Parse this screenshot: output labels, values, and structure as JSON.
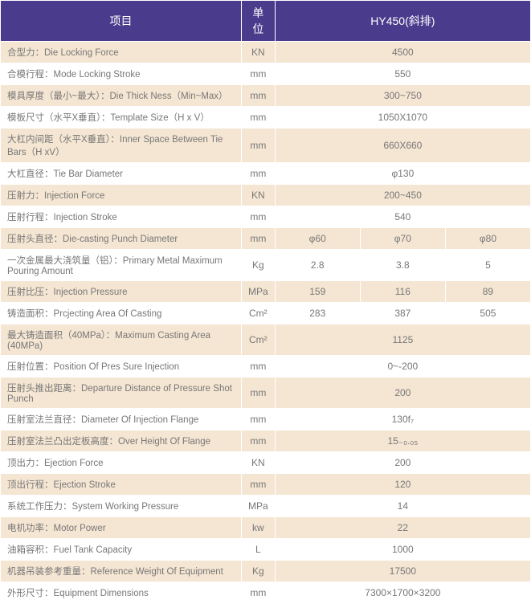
{
  "header": {
    "project": "项目",
    "unit": "单位",
    "model": "HY450(斜排)"
  },
  "rows": [
    {
      "label": "合型力：Die Locking Force",
      "unit": "KN",
      "value": "4500"
    },
    {
      "label": "合模行程：Mode Locking Stroke",
      "unit": "mm",
      "value": "550"
    },
    {
      "label": "模具厚度（最小~最大）：Die Thick Ness（Min~Max）",
      "unit": "mm",
      "value": "300~750"
    },
    {
      "label": "模板尺寸（水平X垂直）：Template Size（H x V）",
      "unit": "mm",
      "value": "1050X1070"
    },
    {
      "label": "大杠内间距（水平X垂直）：Inner Space Between Tie Bars（H xV）",
      "unit": "mm",
      "value": "660X660"
    },
    {
      "label": "大杠直径：Tie Bar Diameter",
      "unit": "mm",
      "value": "φ130"
    },
    {
      "label": "压射力：Injection  Force",
      "unit": "KN",
      "value": "200~450"
    },
    {
      "label": "压射行程：Injection Stroke",
      "unit": "mm",
      "value": "540"
    },
    {
      "label": "压射头直径：Die-casting   Punch Diameter",
      "unit": "mm",
      "values": [
        "φ60",
        "φ70",
        "φ80"
      ]
    },
    {
      "label": "一次金属最大浇筑量（铝）：Primary Metal Maximum Pouring Amount",
      "unit": "Kg",
      "values": [
        "2.8",
        "3.8",
        "5"
      ]
    },
    {
      "label": "压射比压：Injection Pressure",
      "unit": "MPa",
      "values": [
        "159",
        "116",
        "89"
      ]
    },
    {
      "label": "铸造面积：Prcjecting Area Of Casting",
      "unit": "Cm²",
      "values": [
        "283",
        "387",
        "505"
      ]
    },
    {
      "label": "最大铸造面积（40MPa）：Maximum Casting Area (40MPa)",
      "unit": "Cm²",
      "value": "1125"
    },
    {
      "label": "压射位置：Position Of Pres Sure Injection",
      "unit": "mm",
      "value": "0~-200"
    },
    {
      "label": "压射头推出距离：Departure Distance of Pressure Shot Punch",
      "unit": "mm",
      "value": "200"
    },
    {
      "label": "压射室法兰直径：Diameter Of Injection Flange",
      "unit": "mm",
      "value": "130f₇"
    },
    {
      "label": "压射室法兰凸出定板高度：Over Height Of Flange",
      "unit": "mm",
      "value": "15₋₀.₀₅"
    },
    {
      "label": "顶出力：Ejection Force",
      "unit": "KN",
      "value": "200"
    },
    {
      "label": "顶出行程：Ejection Stroke",
      "unit": "mm",
      "value": "120"
    },
    {
      "label": "系统工作压力：System Working Pressure",
      "unit": "MPa",
      "value": "14"
    },
    {
      "label": "电机功率：Motor Power",
      "unit": "kw",
      "value": "22"
    },
    {
      "label": "油箱容积：Fuel Tank Capacity",
      "unit": "L",
      "value": "1000"
    },
    {
      "label": "机器吊装参考重量：Reference Weight Of Equipment",
      "unit": "Kg",
      "value": "17500"
    },
    {
      "label": "外形尺寸：Equipment Dimensions",
      "unit": "mm",
      "value": "7300×1700×3200"
    }
  ],
  "colors": {
    "header_bg": "#4a3b8c",
    "header_text": "#ffffff",
    "row_even_bg": "#f5e6d3",
    "row_odd_bg": "#ffffff",
    "text": "#777777",
    "border": "#ffffff"
  }
}
